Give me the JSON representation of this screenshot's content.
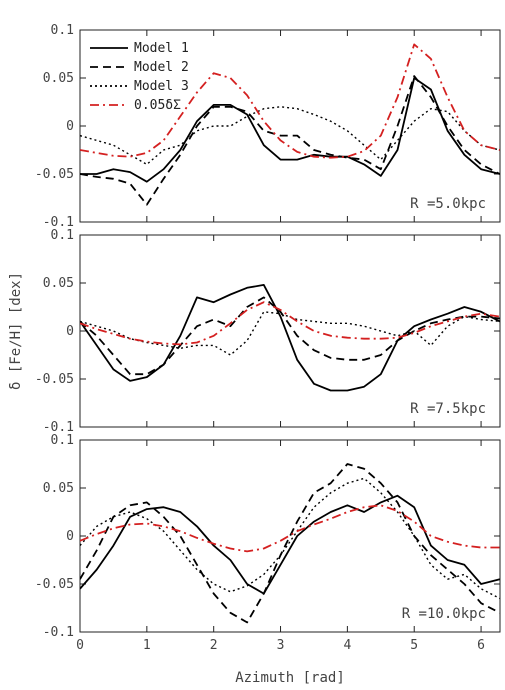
{
  "chart_data": {
    "type": "line",
    "xlabel": "Azimuth [rad]",
    "ylabel": "δ [Fe/H] [dex]",
    "xlim": [
      0,
      6.2832
    ],
    "ylim": [
      -0.1,
      0.1
    ],
    "xticks": [
      0,
      1,
      2,
      3,
      4,
      5,
      6
    ],
    "yticks": [
      -0.1,
      -0.05,
      0,
      0.05,
      0.1
    ],
    "ytick_labels": [
      "-0.1",
      "-0.05",
      "0",
      "0.05",
      "0.1"
    ],
    "legend": {
      "placement": "top-left",
      "entries": [
        "Model 1",
        "Model 2",
        "Model 3",
        "0.05δΣ"
      ]
    },
    "series_styles": [
      {
        "name": "Model 1",
        "color": "#000000",
        "dash": "solid"
      },
      {
        "name": "Model 2",
        "color": "#000000",
        "dash": "dashed"
      },
      {
        "name": "Model 3",
        "color": "#000000",
        "dash": "dotted"
      },
      {
        "name": "0.05δΣ",
        "color": "#d42020",
        "dash": "dashdot"
      }
    ],
    "panels": [
      {
        "label": "R =5.0kpc",
        "series": [
          {
            "name": "Model 1",
            "x": [
              0,
              0.25,
              0.5,
              0.75,
              1.0,
              1.25,
              1.5,
              1.75,
              2.0,
              2.25,
              2.5,
              2.75,
              3.0,
              3.25,
              3.5,
              3.75,
              4.0,
              4.25,
              4.5,
              4.75,
              5.0,
              5.25,
              5.5,
              5.75,
              6.0,
              6.28
            ],
            "y": [
              -0.05,
              -0.05,
              -0.045,
              -0.048,
              -0.058,
              -0.045,
              -0.025,
              0.005,
              0.022,
              0.022,
              0.012,
              -0.02,
              -0.035,
              -0.035,
              -0.03,
              -0.032,
              -0.032,
              -0.04,
              -0.052,
              -0.025,
              0.05,
              0.038,
              -0.005,
              -0.03,
              -0.045,
              -0.05
            ]
          },
          {
            "name": "Model 2",
            "x": [
              0,
              0.25,
              0.5,
              0.75,
              1.0,
              1.25,
              1.5,
              1.75,
              2.0,
              2.25,
              2.5,
              2.75,
              3.0,
              3.25,
              3.5,
              3.75,
              4.0,
              4.25,
              4.5,
              4.75,
              5.0,
              5.25,
              5.5,
              5.75,
              6.0,
              6.28
            ],
            "y": [
              -0.05,
              -0.053,
              -0.055,
              -0.06,
              -0.082,
              -0.055,
              -0.03,
              0.0,
              0.02,
              0.02,
              0.015,
              -0.005,
              -0.01,
              -0.01,
              -0.025,
              -0.03,
              -0.033,
              -0.035,
              -0.045,
              0.0,
              0.052,
              0.03,
              0.0,
              -0.025,
              -0.04,
              -0.05
            ]
          },
          {
            "name": "Model 3",
            "x": [
              0,
              0.25,
              0.5,
              0.75,
              1.0,
              1.25,
              1.5,
              1.75,
              2.0,
              2.25,
              2.5,
              2.75,
              3.0,
              3.25,
              3.5,
              3.75,
              4.0,
              4.25,
              4.5,
              4.75,
              5.0,
              5.25,
              5.5,
              5.75,
              6.0,
              6.28
            ],
            "y": [
              -0.01,
              -0.015,
              -0.02,
              -0.03,
              -0.04,
              -0.025,
              -0.02,
              -0.005,
              0.0,
              0.0,
              0.01,
              0.018,
              0.02,
              0.018,
              0.012,
              0.005,
              -0.005,
              -0.02,
              -0.035,
              -0.015,
              0.005,
              0.018,
              0.015,
              -0.005,
              -0.02,
              -0.025
            ]
          },
          {
            "name": "0.05δΣ",
            "x": [
              0,
              0.25,
              0.5,
              0.75,
              1.0,
              1.25,
              1.5,
              1.75,
              2.0,
              2.25,
              2.5,
              2.75,
              3.0,
              3.25,
              3.5,
              3.75,
              4.0,
              4.25,
              4.5,
              4.75,
              5.0,
              5.25,
              5.5,
              5.75,
              6.0,
              6.28
            ],
            "y": [
              -0.025,
              -0.028,
              -0.031,
              -0.032,
              -0.028,
              -0.015,
              0.01,
              0.035,
              0.055,
              0.05,
              0.032,
              0.005,
              -0.015,
              -0.027,
              -0.032,
              -0.033,
              -0.032,
              -0.026,
              -0.01,
              0.03,
              0.085,
              0.07,
              0.03,
              -0.005,
              -0.02,
              -0.025
            ]
          }
        ]
      },
      {
        "label": "R =7.5kpc",
        "series": [
          {
            "name": "Model 1",
            "x": [
              0,
              0.25,
              0.5,
              0.75,
              1.0,
              1.25,
              1.5,
              1.75,
              2.0,
              2.25,
              2.5,
              2.75,
              3.0,
              3.25,
              3.5,
              3.75,
              4.0,
              4.25,
              4.5,
              4.75,
              5.0,
              5.25,
              5.5,
              5.75,
              6.0,
              6.28
            ],
            "y": [
              0.01,
              -0.015,
              -0.04,
              -0.052,
              -0.048,
              -0.035,
              -0.005,
              0.035,
              0.03,
              0.038,
              0.045,
              0.048,
              0.015,
              -0.03,
              -0.055,
              -0.062,
              -0.062,
              -0.058,
              -0.045,
              -0.01,
              0.005,
              0.012,
              0.018,
              0.025,
              0.02,
              0.01
            ]
          },
          {
            "name": "Model 2",
            "x": [
              0,
              0.25,
              0.5,
              0.75,
              1.0,
              1.25,
              1.5,
              1.75,
              2.0,
              2.25,
              2.5,
              2.75,
              3.0,
              3.25,
              3.5,
              3.75,
              4.0,
              4.25,
              4.5,
              4.75,
              5.0,
              5.25,
              5.5,
              5.75,
              6.0,
              6.28
            ],
            "y": [
              0.01,
              -0.005,
              -0.025,
              -0.045,
              -0.045,
              -0.035,
              -0.015,
              0.005,
              0.012,
              0.005,
              0.025,
              0.035,
              0.02,
              -0.005,
              -0.02,
              -0.028,
              -0.03,
              -0.03,
              -0.025,
              -0.01,
              0.0,
              0.008,
              0.012,
              0.015,
              0.015,
              0.013
            ]
          },
          {
            "name": "Model 3",
            "x": [
              0,
              0.25,
              0.5,
              0.75,
              1.0,
              1.25,
              1.5,
              1.75,
              2.0,
              2.25,
              2.5,
              2.75,
              3.0,
              3.25,
              3.5,
              3.75,
              4.0,
              4.25,
              4.5,
              4.75,
              5.0,
              5.25,
              5.5,
              5.75,
              6.0,
              6.28
            ],
            "y": [
              0.01,
              0.005,
              0.0,
              -0.008,
              -0.012,
              -0.015,
              -0.018,
              -0.015,
              -0.015,
              -0.025,
              -0.01,
              0.02,
              0.018,
              0.012,
              0.01,
              0.008,
              0.008,
              0.005,
              0.0,
              -0.005,
              0.0,
              -0.015,
              0.005,
              0.015,
              0.012,
              0.01
            ]
          },
          {
            "name": "0.05δΣ",
            "x": [
              0,
              0.25,
              0.5,
              0.75,
              1.0,
              1.25,
              1.5,
              1.75,
              2.0,
              2.25,
              2.5,
              2.75,
              3.0,
              3.25,
              3.5,
              3.75,
              4.0,
              4.25,
              4.5,
              4.75,
              5.0,
              5.25,
              5.5,
              5.75,
              6.0,
              6.28
            ],
            "y": [
              0.008,
              0.002,
              -0.003,
              -0.008,
              -0.011,
              -0.013,
              -0.014,
              -0.012,
              -0.005,
              0.008,
              0.022,
              0.03,
              0.022,
              0.01,
              0.0,
              -0.005,
              -0.007,
              -0.008,
              -0.008,
              -0.007,
              -0.002,
              0.005,
              0.01,
              0.015,
              0.018,
              0.015
            ]
          }
        ]
      },
      {
        "label": "R =10.0kpc",
        "series": [
          {
            "name": "Model 1",
            "x": [
              0,
              0.25,
              0.5,
              0.75,
              1.0,
              1.25,
              1.5,
              1.75,
              2.0,
              2.25,
              2.5,
              2.75,
              3.0,
              3.25,
              3.5,
              3.75,
              4.0,
              4.25,
              4.5,
              4.75,
              5.0,
              5.25,
              5.5,
              5.75,
              6.0,
              6.28
            ],
            "y": [
              -0.055,
              -0.035,
              -0.01,
              0.02,
              0.028,
              0.03,
              0.025,
              0.01,
              -0.01,
              -0.025,
              -0.05,
              -0.06,
              -0.03,
              0.0,
              0.015,
              0.025,
              0.032,
              0.025,
              0.035,
              0.042,
              0.03,
              -0.01,
              -0.025,
              -0.03,
              -0.05,
              -0.045
            ]
          },
          {
            "name": "Model 2",
            "x": [
              0,
              0.25,
              0.5,
              0.75,
              1.0,
              1.25,
              1.5,
              1.75,
              2.0,
              2.25,
              2.5,
              2.75,
              3.0,
              3.25,
              3.5,
              3.75,
              4.0,
              4.25,
              4.5,
              4.75,
              5.0,
              5.25,
              5.5,
              5.75,
              6.0,
              6.28
            ],
            "y": [
              -0.045,
              -0.015,
              0.02,
              0.032,
              0.035,
              0.02,
              0.0,
              -0.03,
              -0.06,
              -0.08,
              -0.09,
              -0.06,
              -0.02,
              0.015,
              0.045,
              0.055,
              0.075,
              0.07,
              0.055,
              0.035,
              0.0,
              -0.02,
              -0.035,
              -0.05,
              -0.07,
              -0.08
            ]
          },
          {
            "name": "Model 3",
            "x": [
              0,
              0.25,
              0.5,
              0.75,
              1.0,
              1.25,
              1.5,
              1.75,
              2.0,
              2.25,
              2.5,
              2.75,
              3.0,
              3.25,
              3.5,
              3.75,
              4.0,
              4.25,
              4.5,
              4.75,
              5.0,
              5.25,
              5.5,
              5.75,
              6.0,
              6.28
            ],
            "y": [
              -0.01,
              0.01,
              0.02,
              0.025,
              0.018,
              0.005,
              -0.015,
              -0.035,
              -0.05,
              -0.058,
              -0.052,
              -0.04,
              -0.02,
              0.005,
              0.03,
              0.045,
              0.055,
              0.06,
              0.045,
              0.025,
              0.0,
              -0.03,
              -0.045,
              -0.04,
              -0.055,
              -0.065
            ]
          },
          {
            "name": "0.05δΣ",
            "x": [
              0,
              0.25,
              0.5,
              0.75,
              1.0,
              1.25,
              1.5,
              1.75,
              2.0,
              2.25,
              2.5,
              2.75,
              3.0,
              3.25,
              3.5,
              3.75,
              4.0,
              4.25,
              4.5,
              4.75,
              5.0,
              5.25,
              5.5,
              5.75,
              6.0,
              6.28
            ],
            "y": [
              -0.005,
              0.002,
              0.008,
              0.012,
              0.013,
              0.01,
              0.005,
              -0.002,
              -0.008,
              -0.013,
              -0.016,
              -0.013,
              -0.005,
              0.005,
              0.012,
              0.018,
              0.025,
              0.03,
              0.032,
              0.026,
              0.015,
              0.0,
              -0.006,
              -0.01,
              -0.012,
              -0.012
            ]
          }
        ]
      }
    ]
  }
}
